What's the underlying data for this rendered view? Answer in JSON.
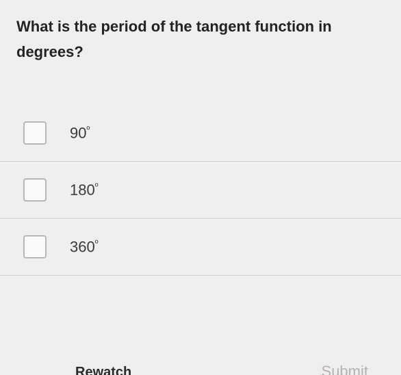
{
  "question": "What is the period of the tangent function in degrees?",
  "options": [
    {
      "value": "90",
      "unit": "º"
    },
    {
      "value": "180",
      "unit": "º"
    },
    {
      "value": "360",
      "unit": "º"
    }
  ],
  "footer": {
    "rewatch": "Rewatch",
    "submit": "Submit"
  },
  "colors": {
    "background": "#f1efee",
    "text": "#2a2a2a",
    "border": "#d1cfce",
    "checkbox_border": "#b9b7b5",
    "checkbox_bg": "#fbfaf9",
    "submit_text": "#b4b2b0"
  }
}
